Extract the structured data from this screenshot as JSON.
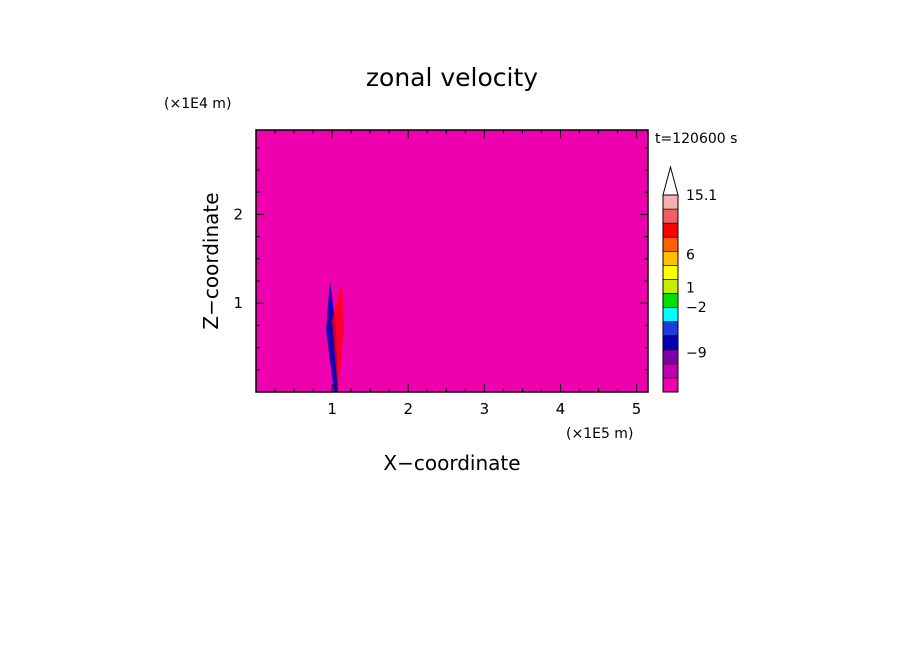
{
  "chart_data": {
    "type": "heatmap",
    "title": "zonal velocity",
    "xlabel": "X−coordinate",
    "ylabel": "Z−coordinate",
    "x_scale_label": "(×1E5 m)",
    "y_scale_label": "(×1E4 m)",
    "time_label": "t=120600 s",
    "xlim": [
      0,
      5.15
    ],
    "ylim": [
      0,
      2.95
    ],
    "x_ticks": [
      1,
      2,
      3,
      4,
      5
    ],
    "y_ticks": [
      1,
      2
    ],
    "colorbar": {
      "labels": [
        "15.1",
        "6",
        "1",
        "−2",
        "−9"
      ],
      "label_values": [
        15.1,
        6,
        1,
        -2,
        -9
      ],
      "min": -15,
      "max": 15.1,
      "overflow_triangle": "top",
      "colors": [
        "#f000b0",
        "#c000b0",
        "#8000a8",
        "#0000b0",
        "#1a3cd8",
        "#00ffff",
        "#00e000",
        "#c0f000",
        "#ffff00",
        "#ffc000",
        "#ff6000",
        "#ff0000",
        "#f06060",
        "#f4b0b0"
      ]
    },
    "grid": false
  }
}
